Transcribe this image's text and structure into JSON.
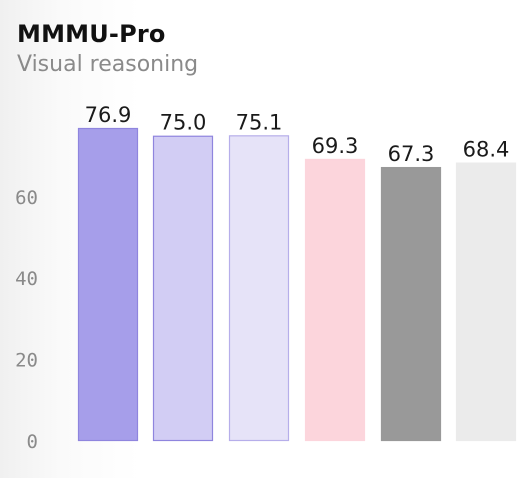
{
  "title": "MMMU-Pro",
  "subtitle": "Visual reasoning",
  "chart_data": {
    "type": "bar",
    "title": "MMMU-Pro",
    "subtitle": "Visual reasoning",
    "categories": [
      "",
      "",
      "",
      "",
      "",
      ""
    ],
    "values": [
      76.9,
      75.0,
      75.1,
      69.3,
      67.3,
      68.4
    ],
    "value_labels": [
      "76.9",
      "75.0",
      "75.1",
      "69.3",
      "67.3",
      "68.4"
    ],
    "yticks": [
      0,
      20,
      40,
      60
    ],
    "ylim": [
      0,
      76.9
    ],
    "grid": false,
    "colors": [
      {
        "fill": "#a69eea",
        "stroke": "#8f85de"
      },
      {
        "fill": "#d2cdf4",
        "stroke": "#8f85de"
      },
      {
        "fill": "#e6e3f8",
        "stroke": "#b6aeea"
      },
      {
        "fill": "#fcd5dc",
        "stroke": "#fcd5dc"
      },
      {
        "fill": "#999999",
        "stroke": "#999999"
      },
      {
        "fill": "#ebebeb",
        "stroke": "#ebebeb"
      }
    ]
  }
}
